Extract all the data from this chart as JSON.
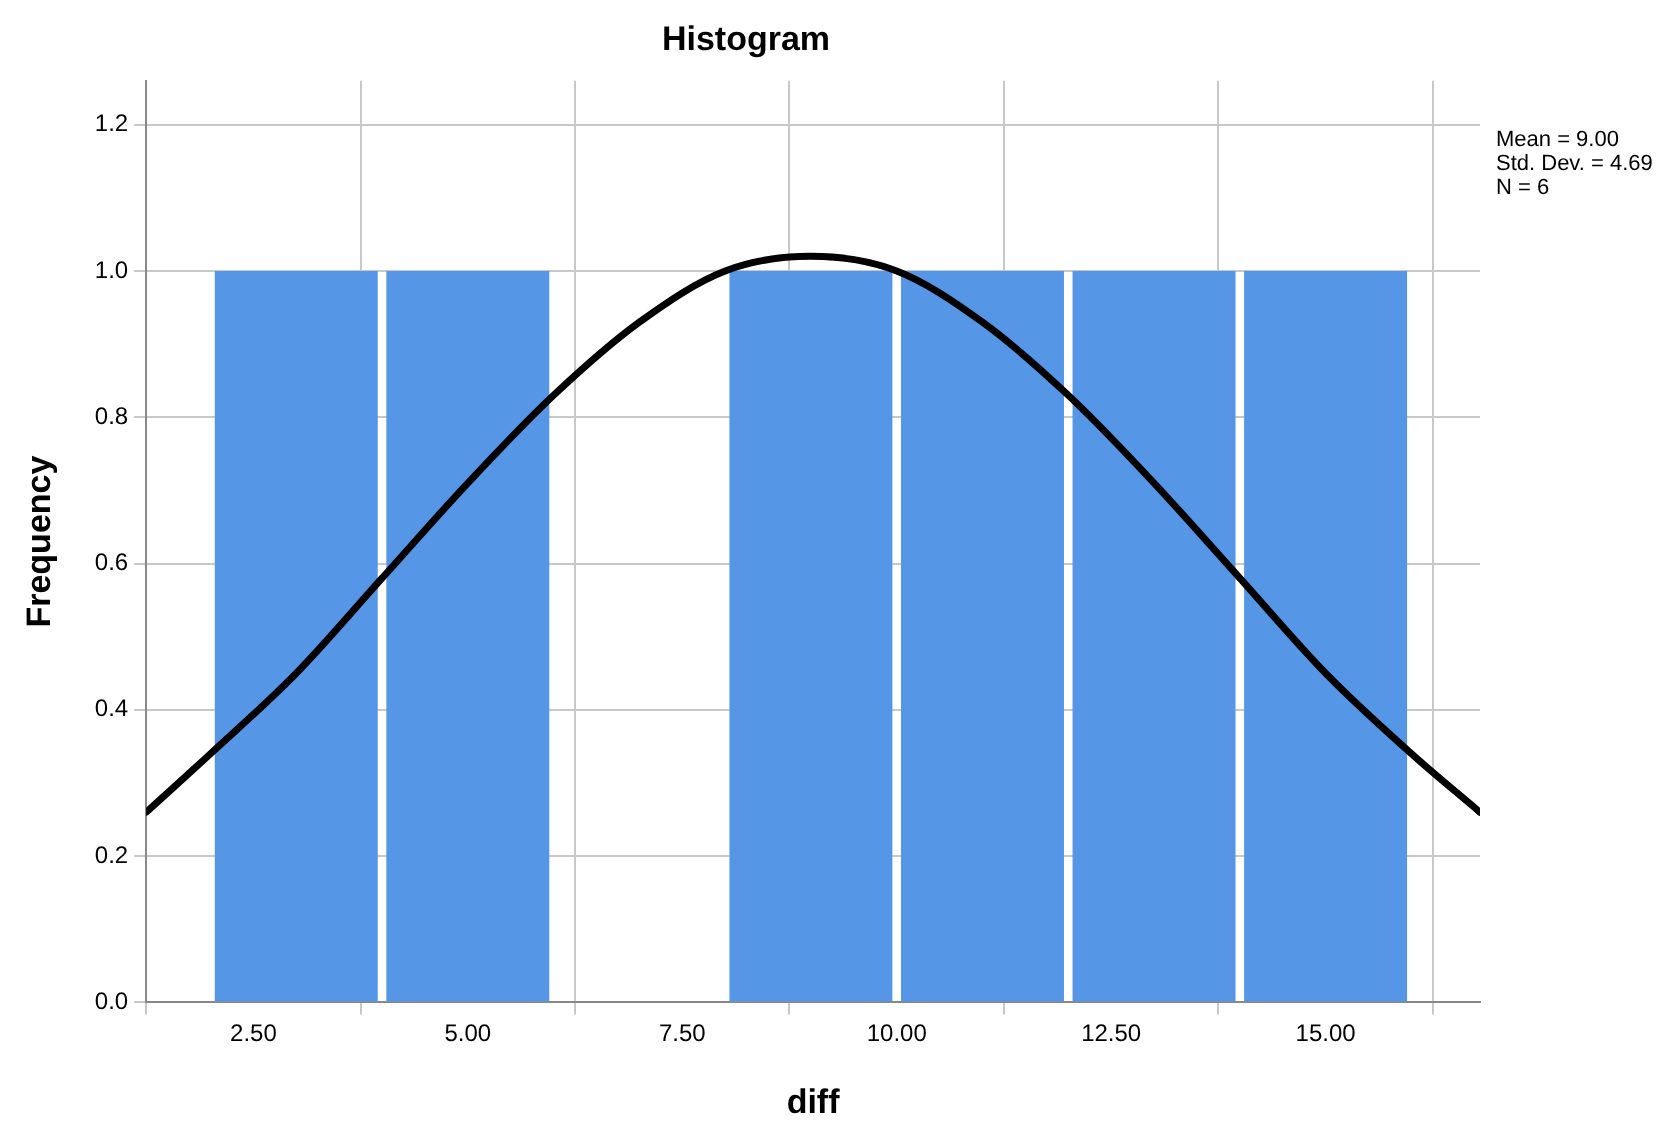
{
  "chart_data": {
    "type": "histogram",
    "title": "Histogram",
    "xlabel": "diff",
    "ylabel": "Frequency",
    "bins": [
      2,
      4,
      6,
      8,
      10,
      12,
      14,
      16
    ],
    "values": [
      1,
      1,
      0,
      1,
      1,
      1,
      1
    ],
    "color": "#5596e6",
    "series": [
      {
        "type": "line",
        "color": "#000000",
        "x": [
          1.25,
          2,
          3,
          4,
          5,
          6,
          7,
          8,
          9,
          10,
          11,
          12,
          13,
          14,
          15,
          16,
          16.8
        ],
        "values": [
          0.26,
          0.34,
          0.45,
          0.58,
          0.71,
          0.83,
          0.93,
          1.0,
          1.02,
          1.0,
          0.93,
          0.83,
          0.71,
          0.58,
          0.45,
          0.34,
          0.26
        ]
      }
    ],
    "marker": "none",
    "line_style": "solid",
    "xlim": [
      1.25,
      16.8
    ],
    "xticks": [
      {
        "value": 2.5,
        "label": "2.50"
      },
      {
        "value": 5,
        "label": "5.00"
      },
      {
        "value": 7.5,
        "label": "7.50"
      },
      {
        "value": 10,
        "label": "10.00"
      },
      {
        "value": 12.5,
        "label": "12.50"
      },
      {
        "value": 15,
        "label": "15.00"
      }
    ],
    "ylim": [
      0,
      1.26
    ],
    "yticks": [
      {
        "value": 0,
        "label": "0.0"
      },
      {
        "value": 0.2,
        "label": "0.2"
      },
      {
        "value": 0.4,
        "label": "0.4"
      },
      {
        "value": 0.6,
        "label": "0.6"
      },
      {
        "value": 0.8,
        "label": "0.8"
      },
      {
        "value": 1.0,
        "label": "1.0"
      },
      {
        "value": 1.2,
        "label": "1.2"
      }
    ],
    "grid": true,
    "legend": false,
    "annotations": [
      "Mean = 9.00",
      "Std. Dev. = 4.69",
      "N = 6"
    ]
  }
}
